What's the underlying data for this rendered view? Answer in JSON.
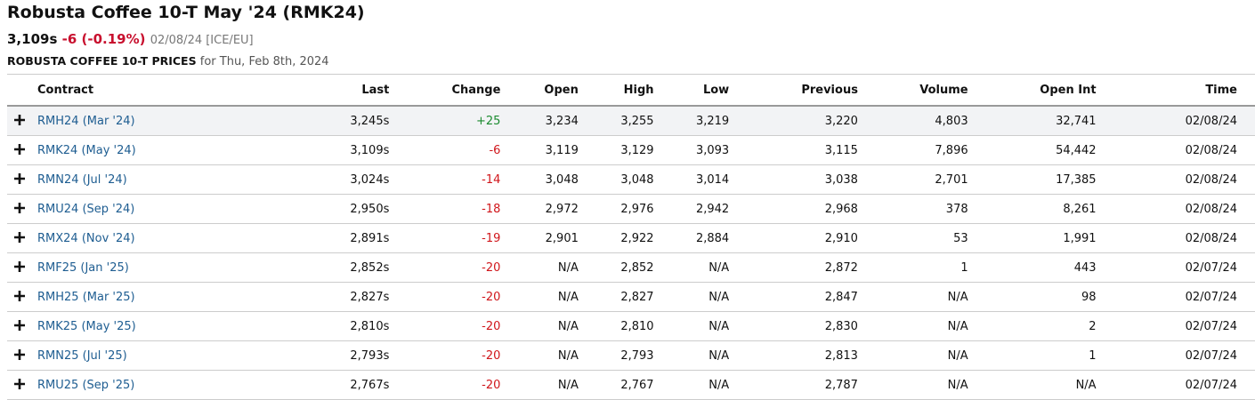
{
  "header": {
    "title": "Robusta Coffee 10-T May '24 (RMK24)",
    "last": "3,109s",
    "change": "-6 (-0.19%)",
    "date": "02/08/24 [ICE/EU]",
    "subtitle": "ROBUSTA COFFEE 10-T PRICES",
    "subtitle_date": "for Thu, Feb 8th, 2024"
  },
  "table": {
    "columns": [
      "Contract",
      "Last",
      "Change",
      "Open",
      "High",
      "Low",
      "Previous",
      "Volume",
      "Open Int",
      "Time"
    ],
    "rows": [
      [
        "RMH24 (Mar '24)",
        "3,245s",
        "+25",
        "3,234",
        "3,255",
        "3,219",
        "3,220",
        "4,803",
        "32,741",
        "02/08/24"
      ],
      [
        "RMK24 (May '24)",
        "3,109s",
        "-6",
        "3,119",
        "3,129",
        "3,093",
        "3,115",
        "7,896",
        "54,442",
        "02/08/24"
      ],
      [
        "RMN24 (Jul '24)",
        "3,024s",
        "-14",
        "3,048",
        "3,048",
        "3,014",
        "3,038",
        "2,701",
        "17,385",
        "02/08/24"
      ],
      [
        "RMU24 (Sep '24)",
        "2,950s",
        "-18",
        "2,972",
        "2,976",
        "2,942",
        "2,968",
        "378",
        "8,261",
        "02/08/24"
      ],
      [
        "RMX24 (Nov '24)",
        "2,891s",
        "-19",
        "2,901",
        "2,922",
        "2,884",
        "2,910",
        "53",
        "1,991",
        "02/08/24"
      ],
      [
        "RMF25 (Jan '25)",
        "2,852s",
        "-20",
        "N/A",
        "2,852",
        "N/A",
        "2,872",
        "1",
        "443",
        "02/07/24"
      ],
      [
        "RMH25 (Mar '25)",
        "2,827s",
        "-20",
        "N/A",
        "2,827",
        "N/A",
        "2,847",
        "N/A",
        "98",
        "02/07/24"
      ],
      [
        "RMK25 (May '25)",
        "2,810s",
        "-20",
        "N/A",
        "2,810",
        "N/A",
        "2,830",
        "N/A",
        "2",
        "02/07/24"
      ],
      [
        "RMN25 (Jul '25)",
        "2,793s",
        "-20",
        "N/A",
        "2,793",
        "N/A",
        "2,813",
        "N/A",
        "1",
        "02/07/24"
      ],
      [
        "RMU25 (Sep '25)",
        "2,767s",
        "-20",
        "N/A",
        "2,767",
        "N/A",
        "2,787",
        "N/A",
        "N/A",
        "02/07/24"
      ]
    ]
  }
}
